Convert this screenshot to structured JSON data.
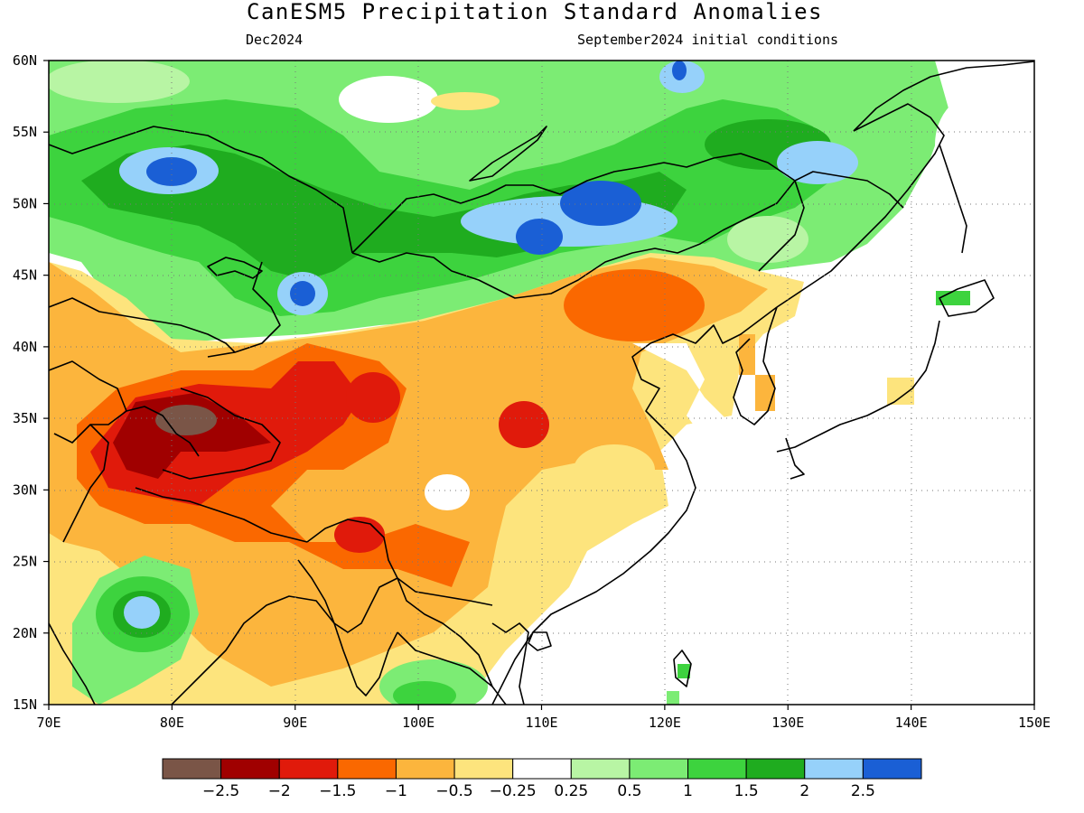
{
  "title": "CanESM5 Precipitation Standard Anomalies",
  "subtitle_left": "Dec2024",
  "subtitle_right": "September2024 initial conditions",
  "map": {
    "lon_range": [
      70,
      150
    ],
    "lat_range": [
      15,
      60
    ],
    "lon_ticks": [
      "70E",
      "80E",
      "90E",
      "100E",
      "110E",
      "120E",
      "130E",
      "140E",
      "150E"
    ],
    "lat_ticks": [
      "60N",
      "55N",
      "50N",
      "45N",
      "40N",
      "35N",
      "30N",
      "25N",
      "20N",
      "15N"
    ],
    "grid": "dotted"
  },
  "colorbar": {
    "colors": [
      "#7a5547",
      "#a00000",
      "#e01a0b",
      "#fa6800",
      "#fcb53d",
      "#fde47d",
      "#ffffff",
      "#b8f5a4",
      "#7cec74",
      "#3dd33e",
      "#1fac1f",
      "#96d1fa",
      "#1a5fd5"
    ],
    "labels": [
      "−2.5",
      "−2",
      "−1.5",
      "−1",
      "−0.5",
      "−0.25",
      "0.25",
      "0.5",
      "1",
      "1.5",
      "2",
      "2.5"
    ]
  }
}
